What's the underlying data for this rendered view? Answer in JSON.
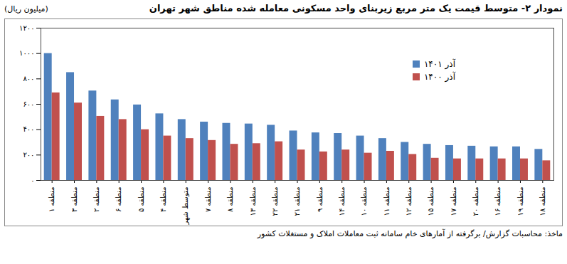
{
  "chart_data": {
    "type": "bar",
    "title": "نمودار ۲- متوسط قیمت یک متر مربع زیربنای واحد مسکونی معامله شده مناطق شهر تهران",
    "y_label": "(میلیون ریال)",
    "source": "ماخذ: محاسبات گزارش/ برگرفته از آمارهای خام سامانه ثبت معاملات املاک و مستغلات کشور",
    "categories": [
      "منطقه ۱",
      "منطقه ۳",
      "منطقه ۲",
      "منطقه ۶",
      "منطقه ۵",
      "منطقه ۴",
      "متوسط شهر",
      "منطقه ۷",
      "منطقه ۸",
      "منطقه ۱۳",
      "منطقه ۲۲",
      "منطقه ۲۱",
      "منطقه ۹",
      "منطقه ۱۴",
      "منطقه ۱۰",
      "منطقه ۱۱",
      "منطقه ۱۲",
      "منطقه ۱۵",
      "منطقه ۱۷",
      "منطقه ۲۰",
      "منطقه ۱۶",
      "منطقه ۱۹",
      "منطقه ۱۸"
    ],
    "series": [
      {
        "name": "آذر ۱۴۰۱",
        "color": "#4f81bd",
        "values": [
          1000,
          850,
          705,
          635,
          595,
          525,
          480,
          460,
          450,
          445,
          435,
          390,
          375,
          370,
          350,
          330,
          300,
          285,
          275,
          270,
          265,
          265,
          245
        ]
      },
      {
        "name": "آذر ۱۴۰۰",
        "color": "#c0504d",
        "values": [
          690,
          610,
          505,
          480,
          400,
          350,
          330,
          315,
          285,
          290,
          305,
          240,
          225,
          240,
          215,
          230,
          205,
          175,
          170,
          170,
          170,
          170,
          155
        ]
      }
    ],
    "ylim": [
      0,
      1200
    ],
    "yticks": [
      {
        "value": 0,
        "label": "۰"
      },
      {
        "value": 200,
        "label": "۲۰۰"
      },
      {
        "value": 400,
        "label": "۴۰۰"
      },
      {
        "value": 600,
        "label": "۶۰۰"
      },
      {
        "value": 800,
        "label": "۸۰۰"
      },
      {
        "value": 1000,
        "label": "۱۰۰۰"
      },
      {
        "value": 1200,
        "label": "۱۲۰۰"
      }
    ],
    "grid": false,
    "legend": "top-right"
  }
}
